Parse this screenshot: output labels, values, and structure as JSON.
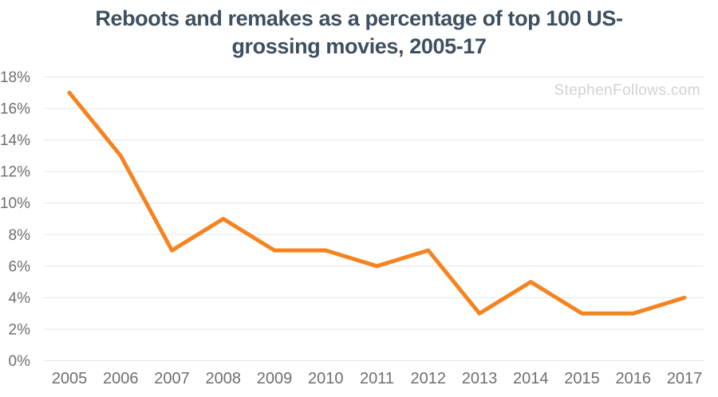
{
  "title": {
    "line1": "Reboots and remakes as a percentage of top 100 US-",
    "line2": "grossing movies, 2005-17"
  },
  "watermark": "StephenFollows.com",
  "chart_data": {
    "type": "line",
    "title": "Reboots and remakes as a percentage of top 100 US-grossing movies, 2005-17",
    "categories": [
      "2005",
      "2006",
      "2007",
      "2008",
      "2009",
      "2010",
      "2011",
      "2012",
      "2013",
      "2014",
      "2015",
      "2016",
      "2017"
    ],
    "series": [
      {
        "name": "Reboots and remakes share of top 100 US-grossing movies",
        "values": [
          17,
          13,
          7,
          9,
          7,
          7,
          6,
          7,
          3,
          5,
          3,
          3,
          4
        ]
      }
    ],
    "xlabel": "",
    "ylabel": "",
    "ylim": [
      0,
      18
    ],
    "y_ticks": [
      {
        "value": 0,
        "label": "0%"
      },
      {
        "value": 2,
        "label": "2%"
      },
      {
        "value": 4,
        "label": "4%"
      },
      {
        "value": 6,
        "label": "6%"
      },
      {
        "value": 8,
        "label": "8%"
      },
      {
        "value": 10,
        "label": "10%"
      },
      {
        "value": 12,
        "label": "12%"
      },
      {
        "value": 14,
        "label": "14%"
      },
      {
        "value": 16,
        "label": "16%"
      },
      {
        "value": 18,
        "label": "18%"
      }
    ],
    "grid": true,
    "legend_position": "none"
  },
  "colors": {
    "background": "#ffffff",
    "line": "#f5831f",
    "grid": "#e4e4e4",
    "axis_labels": "#6f6f6f",
    "title": "#3e4f5f",
    "watermark": "#d2d2d2"
  }
}
